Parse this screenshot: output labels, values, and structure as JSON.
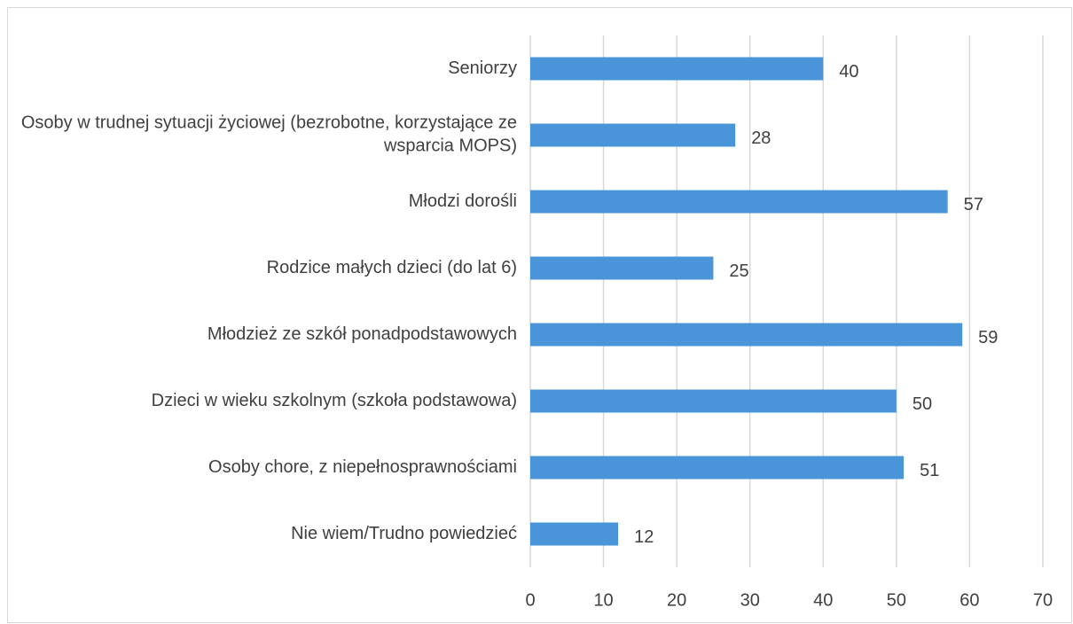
{
  "chart_data": {
    "type": "barh",
    "categories": [
      "Seniorzy",
      "Osoby w trudnej sytuacji życiowej (bezrobotne, korzystające ze wsparcia MOPS)",
      "Młodzi dorośli",
      "Rodzice małych dzieci (do lat 6)",
      "Młodzież ze szkół ponadpodstawowych",
      "Dzieci w wieku szkolnym (szkoła podstawowa)",
      "Osoby chore, z niepełnosprawnościami",
      "Nie wiem/Trudno powiedzieć"
    ],
    "values": [
      40,
      28,
      57,
      25,
      59,
      50,
      51,
      12
    ],
    "color": "#4a94d9",
    "xlim": [
      0,
      70
    ],
    "xticks": [
      0,
      10,
      20,
      30,
      40,
      50,
      60,
      70
    ],
    "grid": true
  }
}
